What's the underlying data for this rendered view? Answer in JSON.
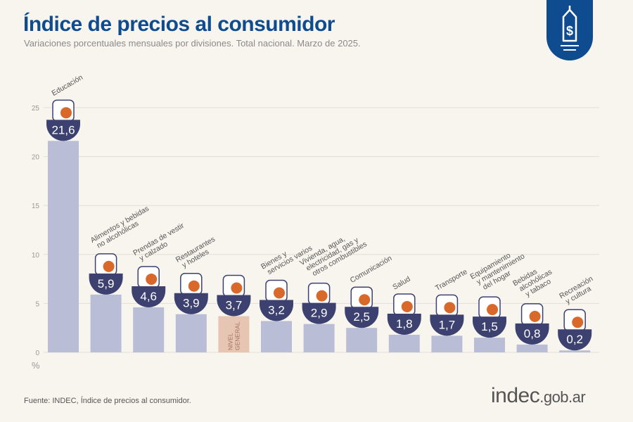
{
  "header": {
    "title": "Índice de precios al consumidor",
    "subtitle": "Variaciones porcentuales mensuales por divisiones. Total nacional. Marzo de 2025."
  },
  "footer": {
    "source": "Fuente: INDEC, Índice de precios al consumidor.",
    "brand_main": "indec",
    "brand_suffix": ".gob.ar"
  },
  "colors": {
    "title": "#0f4c8f",
    "bar": "#b9bdd5",
    "general_bar": "#e7c5b3",
    "badge": "#3c4170",
    "icon_accent": "#d9692a"
  },
  "chart_data": {
    "type": "bar",
    "title": "Índice de precios al consumidor",
    "ylabel": "%",
    "ylim": [
      0,
      25
    ],
    "yticks": [
      0,
      5,
      10,
      15,
      20,
      25
    ],
    "grid": true,
    "categories": [
      "Educación",
      "Alimentos y bebidas no alcohólicas",
      "Prendas de vestir y calzado",
      "Restaurantes y hoteles",
      "Nivel general",
      "Bienes y servicios varios",
      "Vivienda, agua, electricidad, gas y otros combustibles",
      "Comunicación",
      "Salud",
      "Transporte",
      "Equipamiento y mantenimiento del hogar",
      "Bebidas alcohólicas y tabaco",
      "Recreación y cultura"
    ],
    "label_lines": [
      [
        "Educación"
      ],
      [
        "Alimentos y bebidas",
        "no alcohólicas"
      ],
      [
        "Prendas de vestir",
        "y calzado"
      ],
      [
        "Restaurantes",
        "y hoteles"
      ],
      [],
      [
        "Bienes y",
        "servicios varios"
      ],
      [
        "Vivienda, agua,",
        "electricidad, gas y",
        "otros combustibles"
      ],
      [
        "Comunicación"
      ],
      [
        "Salud"
      ],
      [
        "Transporte"
      ],
      [
        "Equipamiento",
        "y mantenimiento",
        "del hogar"
      ],
      [
        "Bebidas",
        "alcohólicas",
        "y tabaco"
      ],
      [
        "Recreación",
        "y cultura"
      ]
    ],
    "values": [
      21.6,
      5.9,
      4.6,
      3.9,
      3.7,
      3.2,
      2.9,
      2.5,
      1.8,
      1.7,
      1.5,
      0.8,
      0.2
    ],
    "value_labels": [
      "21,6",
      "5,9",
      "4,6",
      "3,9",
      "3,7",
      "3,2",
      "2,9",
      "2,5",
      "1,8",
      "1,7",
      "1,5",
      "0,8",
      "0,2"
    ],
    "general_label": [
      "NIVEL",
      "GENERAL"
    ],
    "icons": [
      "notebook-icon",
      "food-icon",
      "shirt-icon",
      "plate-cutlery-icon",
      "shopping-basket-icon",
      "comb-scissors-icon",
      "key-bulb-icon",
      "phone-icon",
      "first-aid-icon",
      "car-sube-icon",
      "washing-machine-icon",
      "wine-cigarette-icon",
      "umbrella-sun-icon"
    ]
  }
}
